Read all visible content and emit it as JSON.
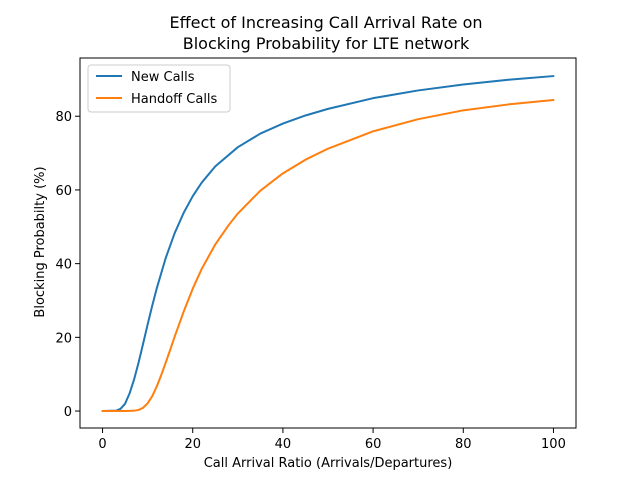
{
  "chart_data": {
    "type": "line",
    "title": [
      "Effect of Increasing Call Arrival Rate on",
      "Blocking Probability for LTE network"
    ],
    "xlabel": "Call Arrival Ratio (Arrivals/Departures)",
    "ylabel": "Blocking Probabilty (%)",
    "xlim": [
      -5,
      105
    ],
    "ylim": [
      -4.6,
      95.8
    ],
    "xticks": [
      0,
      20,
      40,
      60,
      80,
      100
    ],
    "yticks": [
      0,
      20,
      40,
      60,
      80
    ],
    "grid": false,
    "legend_position": "top-left",
    "series": [
      {
        "name": "New Calls",
        "color": "#1f77b4",
        "x": [
          0,
          3,
          4,
          5,
          6,
          7,
          8,
          9,
          10,
          11,
          12,
          14,
          16,
          18,
          20,
          22,
          25,
          30,
          35,
          40,
          45,
          50,
          60,
          70,
          80,
          90,
          100
        ],
        "y": [
          0,
          0.1,
          0.6,
          2.0,
          4.8,
          8.6,
          13.2,
          18.3,
          23.5,
          28.5,
          33.2,
          41.5,
          48.3,
          53.8,
          58.3,
          62.0,
          66.4,
          71.6,
          75.3,
          78.0,
          80.2,
          82.0,
          84.9,
          87.0,
          88.6,
          89.9,
          90.9
        ]
      },
      {
        "name": "Handoff Calls",
        "color": "#ff7f0e",
        "x": [
          0,
          5,
          7,
          8,
          9,
          10,
          11,
          12,
          13,
          14,
          15,
          16,
          18,
          20,
          22,
          25,
          28,
          30,
          35,
          40,
          45,
          50,
          60,
          70,
          80,
          90,
          100
        ],
        "y": [
          0,
          0,
          0.1,
          0.3,
          0.9,
          2.1,
          4.0,
          6.6,
          9.7,
          13.1,
          16.6,
          20.2,
          27.0,
          33.2,
          38.6,
          45.2,
          50.5,
          53.6,
          59.8,
          64.5,
          68.2,
          71.2,
          75.9,
          79.2,
          81.6,
          83.2,
          84.4
        ]
      }
    ]
  }
}
